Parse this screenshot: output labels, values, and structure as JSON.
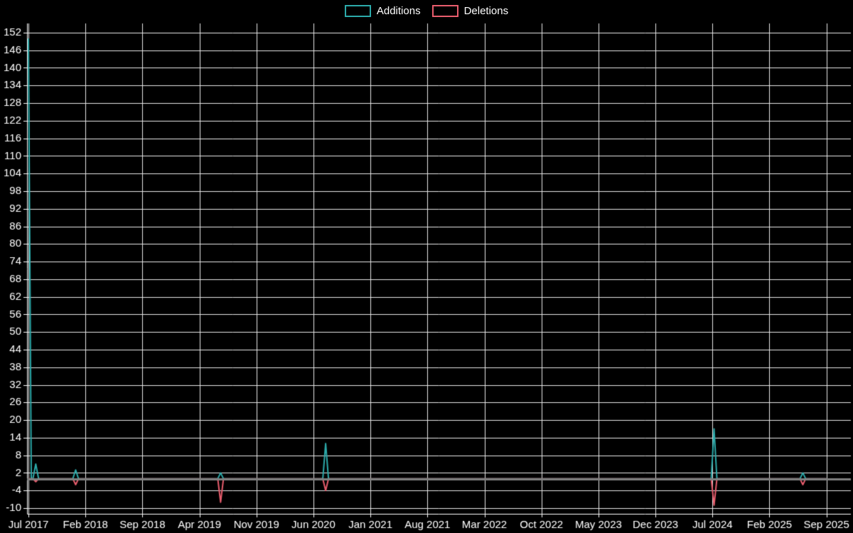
{
  "legend": {
    "items": [
      {
        "label": "Additions",
        "color": "#2caaaa"
      },
      {
        "label": "Deletions",
        "color": "#e85d6d"
      }
    ]
  },
  "chart_data": {
    "type": "line",
    "title": "",
    "xlabel": "",
    "ylabel": "",
    "background": "#000000",
    "text_color": "#ffffff",
    "grid_color": "#e8e8e8",
    "axis_color": "#ffffff",
    "zero_line_color": "#7f7f7f",
    "legend_position": "top-center",
    "grid": true,
    "x_tick_labels": [
      "Jul 2017",
      "Feb 2018",
      "Sep 2018",
      "Apr 2019",
      "Nov 2019",
      "Jun 2020",
      "Jan 2021",
      "Aug 2021",
      "Mar 2022",
      "Oct 2022",
      "May 2023",
      "Dec 2023",
      "Jul 2024",
      "Feb 2025",
      "Sep 2025"
    ],
    "x_tick_interval_months": 7,
    "xlim_months": [
      -0.175,
      101.0
    ],
    "y_ticks": [
      -10,
      -4,
      2,
      8,
      14,
      20,
      26,
      32,
      38,
      44,
      50,
      56,
      62,
      68,
      74,
      80,
      86,
      92,
      98,
      104,
      110,
      116,
      122,
      128,
      134,
      140,
      146,
      152
    ],
    "ylim": [
      -11.94,
      155.13
    ],
    "series": [
      {
        "name": "Additions",
        "color": "#2caaaa",
        "points": [
          [
            0,
            150
          ],
          [
            0.35,
            0
          ],
          [
            0.55,
            0
          ],
          [
            0.9,
            5
          ],
          [
            1.25,
            0
          ],
          [
            5.45,
            0
          ],
          [
            5.8,
            3
          ],
          [
            6.15,
            0
          ],
          [
            23.25,
            0
          ],
          [
            23.6,
            2
          ],
          [
            23.95,
            0
          ],
          [
            36.15,
            0
          ],
          [
            36.5,
            12
          ],
          [
            36.85,
            0
          ],
          [
            83.85,
            0
          ],
          [
            84.2,
            17
          ],
          [
            84.55,
            0
          ],
          [
            94.75,
            0
          ],
          [
            95.1,
            2
          ],
          [
            95.45,
            0
          ],
          [
            98,
            0
          ]
        ]
      },
      {
        "name": "Deletions",
        "color": "#e85d6d",
        "points": [
          [
            0,
            0
          ],
          [
            0.55,
            0
          ],
          [
            0.9,
            -1
          ],
          [
            1.25,
            0
          ],
          [
            5.45,
            0
          ],
          [
            5.8,
            -2
          ],
          [
            6.15,
            0
          ],
          [
            23.25,
            0
          ],
          [
            23.6,
            -8
          ],
          [
            23.95,
            0
          ],
          [
            36.15,
            0
          ],
          [
            36.5,
            -4
          ],
          [
            36.85,
            0
          ],
          [
            83.85,
            0
          ],
          [
            84.2,
            -9
          ],
          [
            84.55,
            0
          ],
          [
            94.75,
            0
          ],
          [
            95.1,
            -2
          ],
          [
            95.45,
            0
          ],
          [
            98,
            0
          ]
        ]
      }
    ]
  }
}
